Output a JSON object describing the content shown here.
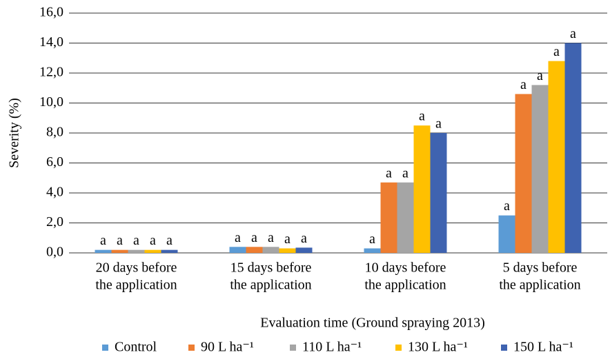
{
  "chart_data": {
    "type": "bar",
    "y_label": "Severity (%)",
    "x_label": "Evaluation time (Ground spraying 2013)",
    "categories": [
      [
        "20 days before",
        "the application"
      ],
      [
        "15 days before",
        "the application"
      ],
      [
        "10 days before",
        "the application"
      ],
      [
        "5 days before",
        "the application"
      ]
    ],
    "series": [
      {
        "name": "Control",
        "color": "#5b9bd5",
        "values": [
          0.2,
          0.4,
          0.3,
          2.5
        ],
        "letters": [
          "a",
          "a",
          "a",
          "a"
        ]
      },
      {
        "name": "90  L ha⁻¹",
        "color": "#ed7d31",
        "values": [
          0.2,
          0.4,
          4.7,
          10.6
        ],
        "letters": [
          "a",
          "a",
          "a",
          "a"
        ]
      },
      {
        "name": "110  L ha⁻¹",
        "color": "#a5a5a5",
        "values": [
          0.2,
          0.4,
          4.7,
          11.2
        ],
        "letters": [
          "a",
          "a",
          "a",
          "a"
        ]
      },
      {
        "name": "130  L ha⁻¹",
        "color": "#ffc000",
        "values": [
          0.2,
          0.3,
          8.5,
          12.8
        ],
        "letters": [
          "a",
          "a",
          "a",
          "a"
        ]
      },
      {
        "name": "150  L ha⁻¹",
        "color": "#3f63b0",
        "values": [
          0.2,
          0.35,
          8.0,
          14.0
        ],
        "letters": [
          "a",
          "a",
          "a",
          "a"
        ]
      }
    ],
    "ylim": [
      0,
      16
    ],
    "yticks": [
      {
        "value": 0,
        "label": "0,0"
      },
      {
        "value": 2,
        "label": "2,0"
      },
      {
        "value": 4,
        "label": "4,0"
      },
      {
        "value": 6,
        "label": "6,0"
      },
      {
        "value": 8,
        "label": "8,0"
      },
      {
        "value": 10,
        "label": "10,0"
      },
      {
        "value": 12,
        "label": "12,0"
      },
      {
        "value": 14,
        "label": "14,0"
      },
      {
        "value": 16,
        "label": "16,0"
      }
    ],
    "grid": true,
    "legend": "bottom"
  }
}
